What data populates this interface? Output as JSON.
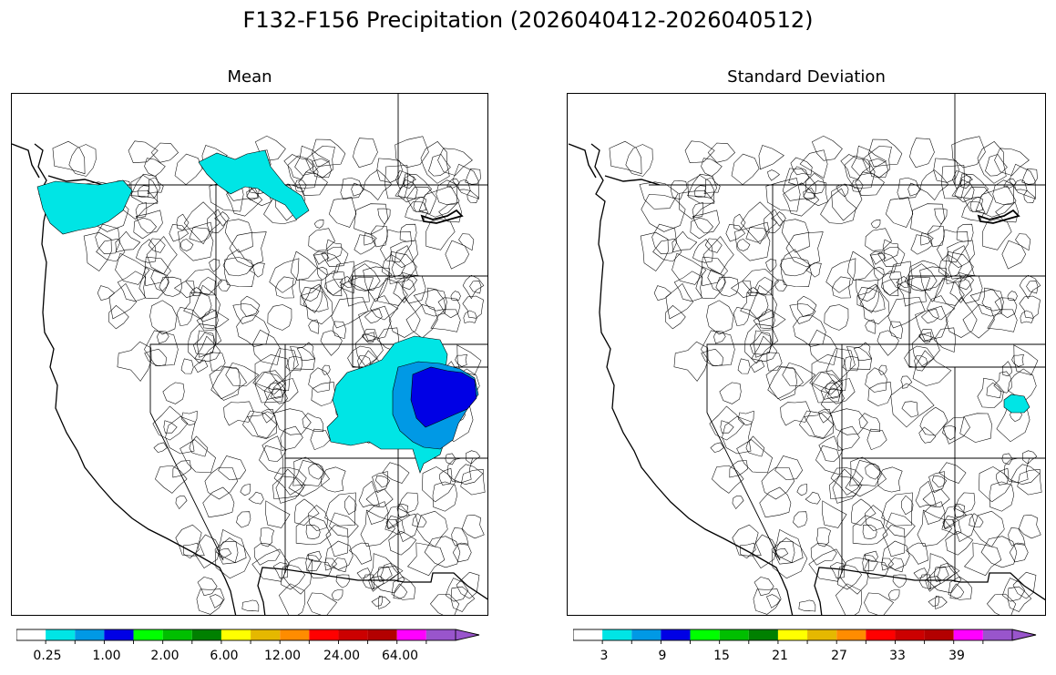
{
  "figure": {
    "title": "F132-F156 Precipitation (2026040412-2026040512)"
  },
  "panels": [
    {
      "title": "Mean",
      "colorbar": {
        "colors": [
          "#ffffff",
          "#00e5e5",
          "#0099e5",
          "#0000e5",
          "#00ff00",
          "#00bf00",
          "#008000",
          "#ffff00",
          "#e5b800",
          "#ff8c00",
          "#ff0000",
          "#cc0000",
          "#b30000",
          "#ff00ff",
          "#9955cc"
        ],
        "tick_labels": [
          "0.25",
          "1.00",
          "2.00",
          "6.00",
          "12.00",
          "24.00",
          "64.00"
        ],
        "extend": "max"
      },
      "shaded_regions": [
        {
          "name": "north-idaho-montana-border",
          "color": "#00e5e5"
        },
        {
          "name": "puget-sound",
          "color": "#00e5e5"
        },
        {
          "name": "colorado-western-slope",
          "color": "#00e5e5"
        },
        {
          "name": "colorado-front-range",
          "color": "#0099e5"
        },
        {
          "name": "colorado-plains-core",
          "color": "#0000e5"
        }
      ]
    },
    {
      "title": "Standard Deviation",
      "colorbar": {
        "colors": [
          "#ffffff",
          "#00e5e5",
          "#0099e5",
          "#0000e5",
          "#00ff00",
          "#00bf00",
          "#008000",
          "#ffff00",
          "#e5b800",
          "#ff8c00",
          "#ff0000",
          "#cc0000",
          "#b30000",
          "#ff00ff",
          "#9955cc"
        ],
        "tick_labels": [
          "3",
          "9",
          "15",
          "21",
          "27",
          "33",
          "39"
        ],
        "extend": "max"
      },
      "shaded_regions": [
        {
          "name": "eastern-colorado-spot",
          "color": "#00e5e5"
        }
      ]
    }
  ]
}
